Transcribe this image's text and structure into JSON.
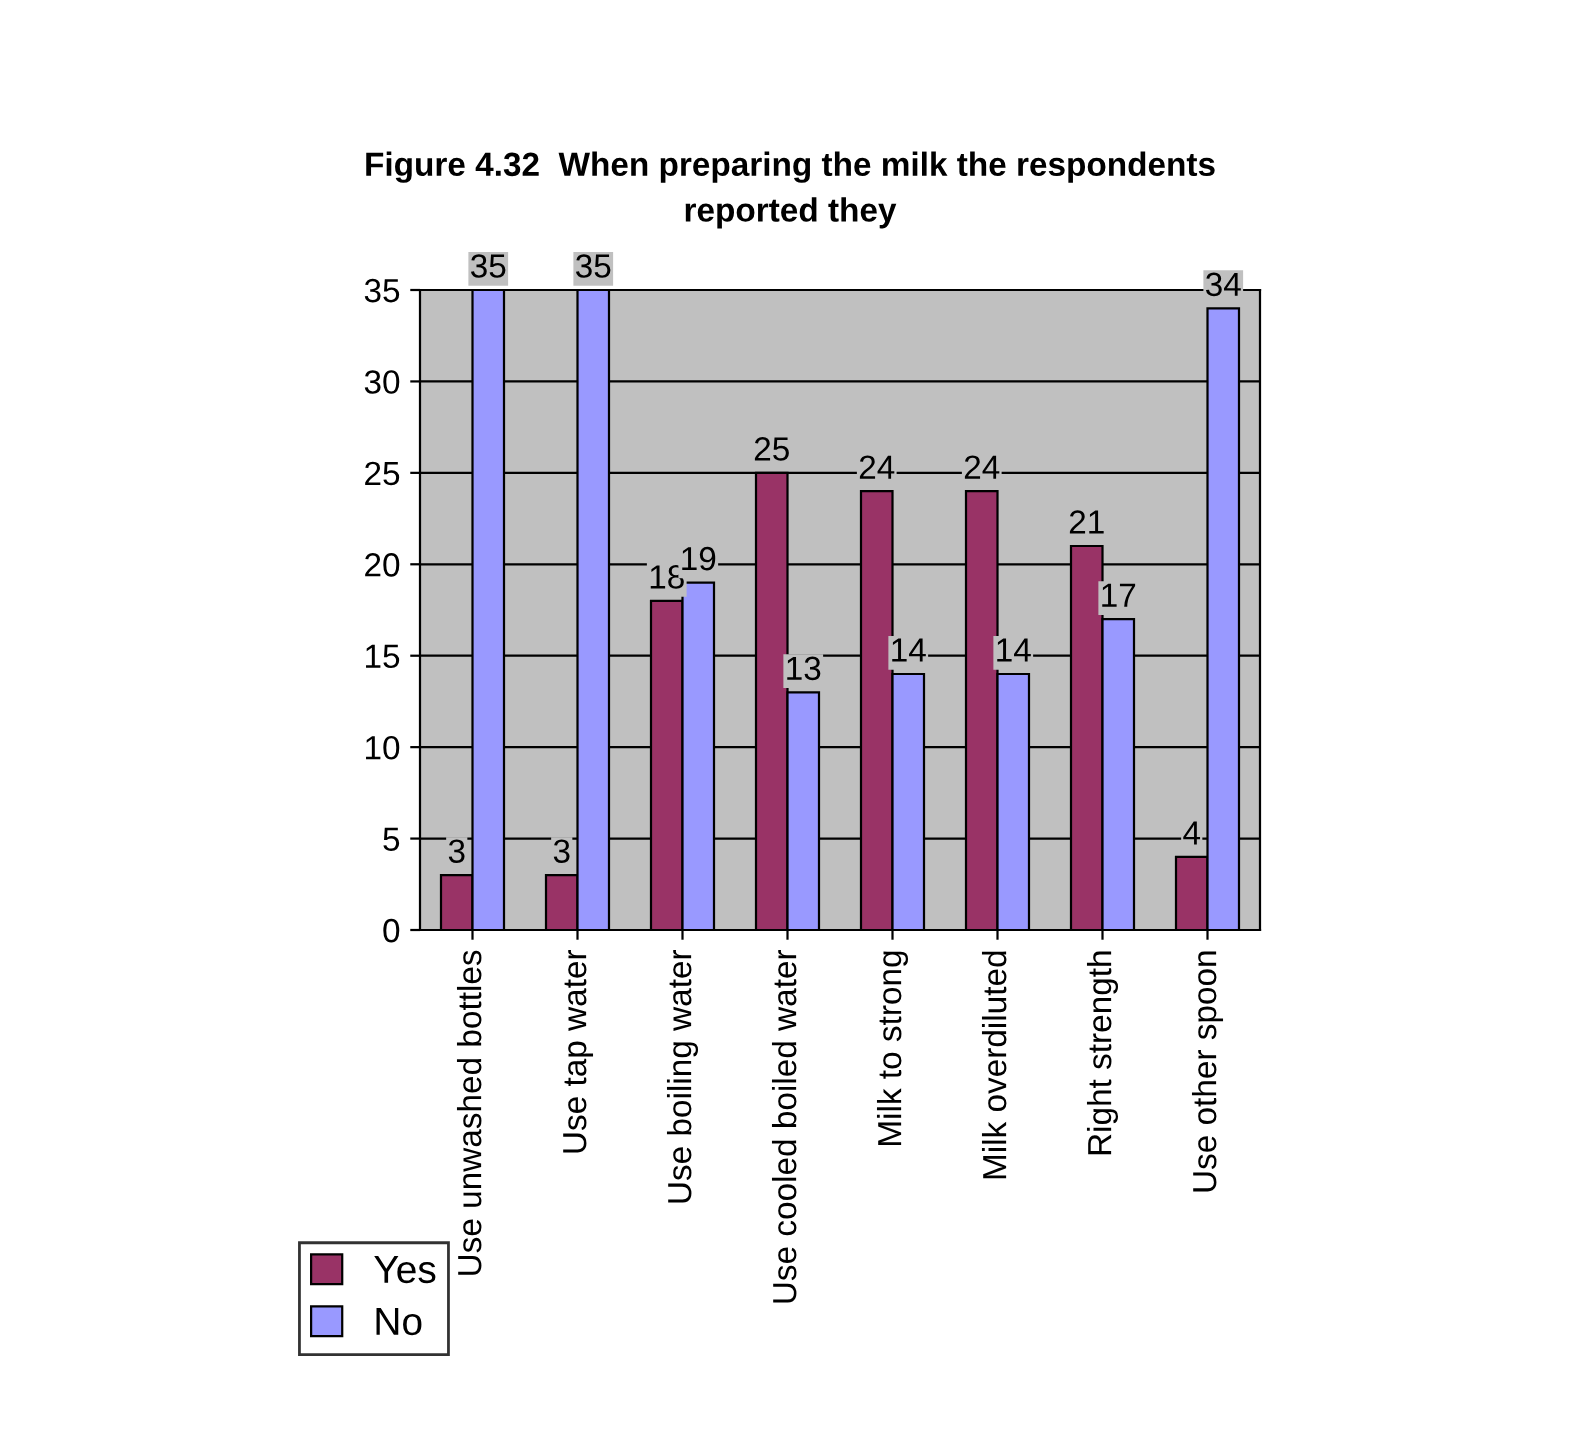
{
  "chart_data": {
    "type": "bar",
    "title": "Figure 4.32  When preparing the milk the respondents\nreported they",
    "categories": [
      "Use unwashed bottles",
      "Use tap water",
      "Use boiling water",
      "Use cooled boiled water",
      "Milk to strong",
      "Milk overdiluted",
      "Right strength",
      "Use other spoon"
    ],
    "series": [
      {
        "name": "Yes",
        "color": "#993366",
        "values": [
          3,
          3,
          18,
          25,
          24,
          24,
          21,
          4
        ]
      },
      {
        "name": "No",
        "color": "#9999ff",
        "values": [
          35,
          35,
          19,
          13,
          14,
          14,
          17,
          34
        ]
      }
    ],
    "ylim": [
      0,
      35
    ],
    "yticks": [
      0,
      5,
      10,
      15,
      20,
      25,
      30,
      35
    ],
    "grid": "y",
    "legend": "bottom left",
    "data_labels": true
  }
}
